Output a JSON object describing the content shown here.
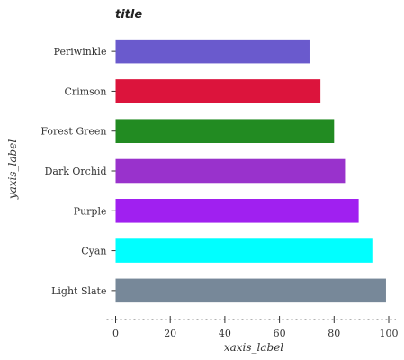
{
  "chart_data": {
    "type": "bar",
    "orientation": "horizontal",
    "title": "title",
    "xlabel": "xaxis_label",
    "ylabel": "yaxis_label",
    "categories": [
      "Light Slate",
      "Cyan",
      "Purple",
      "Dark Orchid",
      "Forest Green",
      "Crimson",
      "Periwinkle"
    ],
    "values": [
      99,
      94,
      89,
      84,
      80,
      75,
      71
    ],
    "colors": [
      "#778899",
      "#00FFFF",
      "#A020F0",
      "#9932CC",
      "#228B22",
      "#DC143C",
      "#6A5ACD"
    ],
    "xlim": [
      0,
      100
    ],
    "xticks": [
      0,
      20,
      40,
      60,
      80,
      100
    ],
    "grid": false
  }
}
